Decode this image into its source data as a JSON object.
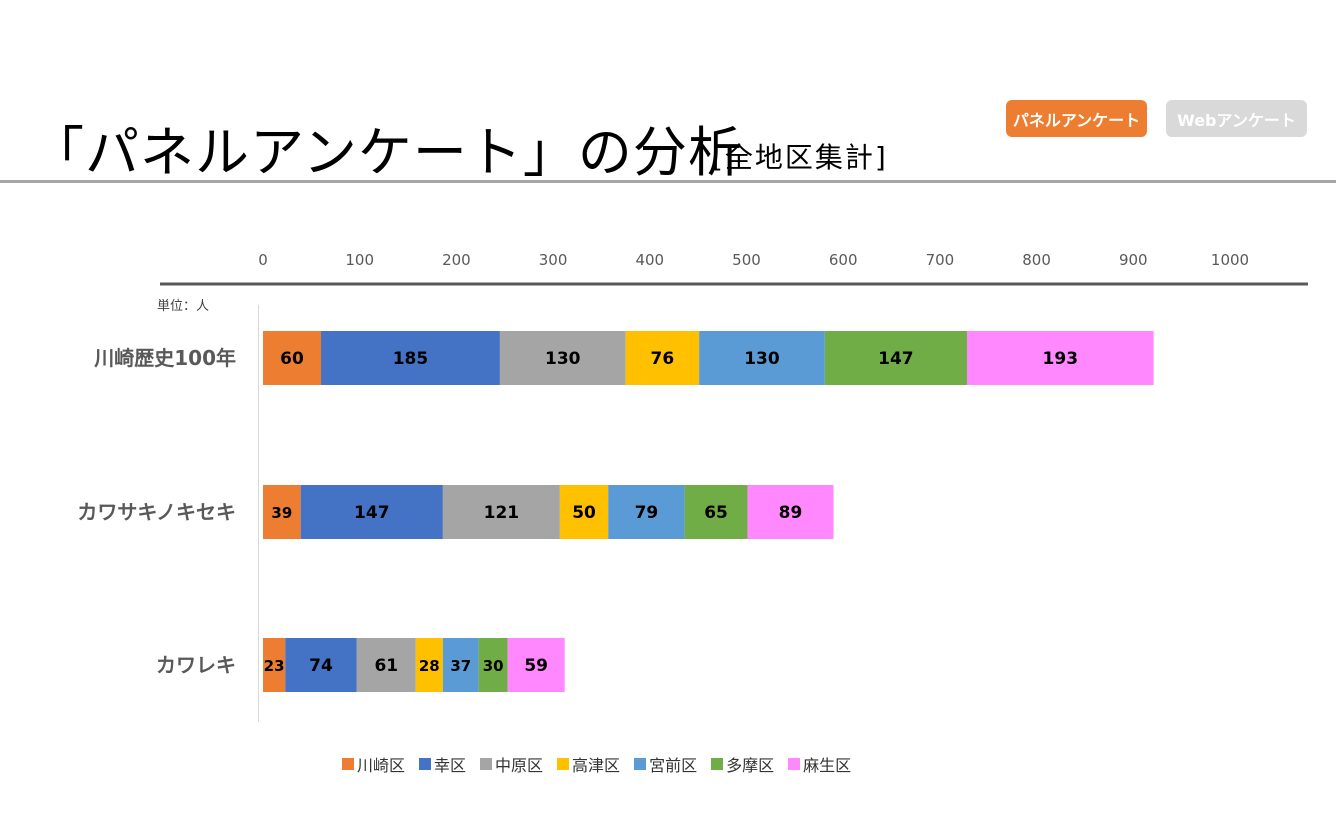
{
  "header": {
    "title": "「パネルアンケート」の分析",
    "subtitle": "[全地区集計]",
    "buttons": {
      "panel_label": "パネルアンケート",
      "web_label": "Webアンケート"
    }
  },
  "colors": {
    "accent": "#ED7D31",
    "inactive": "#D9D9D9",
    "divider": "#A6A6A6"
  },
  "chart_data": {
    "type": "bar",
    "orientation": "horizontal",
    "stacked": true,
    "unit_label": "単位：人",
    "xlim": [
      0,
      1000
    ],
    "xticks": [
      0,
      100,
      200,
      300,
      400,
      500,
      600,
      700,
      800,
      900,
      1000
    ],
    "categories": [
      "川崎歴史100年",
      "カワサキノキセキ",
      "カワレキ"
    ],
    "series": [
      {
        "name": "川崎区",
        "color": "#ED7D31",
        "values": [
          60,
          39,
          23
        ]
      },
      {
        "name": "幸区",
        "color": "#4472C4",
        "values": [
          185,
          147,
          74
        ]
      },
      {
        "name": "中原区",
        "color": "#A5A5A5",
        "values": [
          130,
          121,
          61
        ]
      },
      {
        "name": "高津区",
        "color": "#FFC000",
        "values": [
          76,
          50,
          28
        ]
      },
      {
        "name": "宮前区",
        "color": "#5B9BD5",
        "values": [
          130,
          79,
          37
        ]
      },
      {
        "name": "多摩区",
        "color": "#70AD47",
        "values": [
          147,
          65,
          30
        ]
      },
      {
        "name": "麻生区",
        "color": "#FF88FF",
        "values": [
          193,
          89,
          59
        ]
      }
    ],
    "legend_position": "bottom",
    "grid": false
  }
}
